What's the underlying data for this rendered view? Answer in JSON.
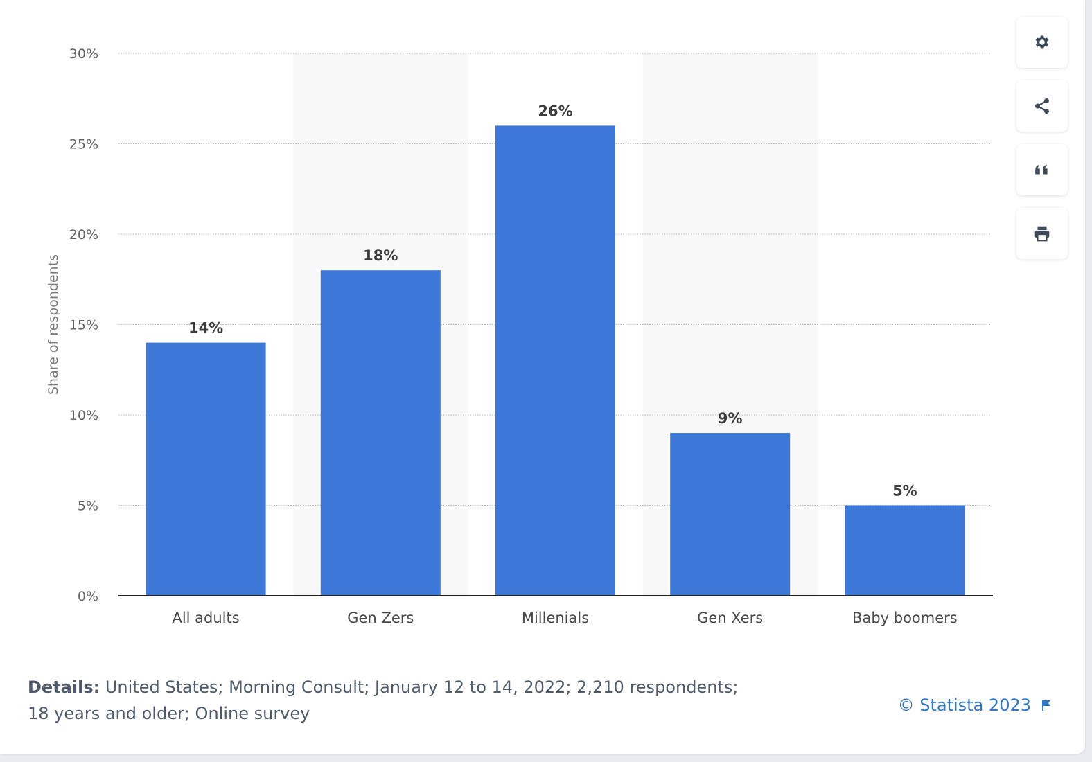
{
  "chart_data": {
    "type": "bar",
    "categories": [
      "All adults",
      "Gen Zers",
      "Millenials",
      "Gen Xers",
      "Baby boomers"
    ],
    "values": [
      14,
      18,
      26,
      9,
      5
    ],
    "value_labels": [
      "14%",
      "18%",
      "26%",
      "9%",
      "5%"
    ],
    "ylabel": "Share of respondents",
    "ylim": [
      0,
      30
    ],
    "yticks": [
      0,
      5,
      10,
      15,
      20,
      25,
      30
    ],
    "ytick_labels": [
      "0%",
      "5%",
      "10%",
      "15%",
      "20%",
      "25%",
      "30%"
    ],
    "grid": true,
    "bar_color": "#3c78d8"
  },
  "details": {
    "label": "Details:",
    "text": "United States; Morning Consult; January 12 to 14, 2022; 2,210 respondents; 18 years and older; Online survey"
  },
  "copyright": "© Statista 2023",
  "toolbar": {
    "icons": [
      "gear-icon",
      "share-icon",
      "quote-icon",
      "print-icon"
    ]
  }
}
